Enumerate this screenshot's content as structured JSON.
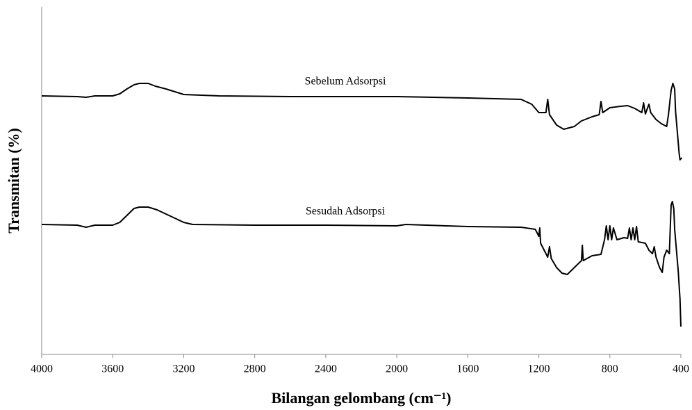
{
  "chart_data": {
    "type": "line",
    "xlabel": "Bilangan gelombang (cm⁻¹)",
    "ylabel": "Transmitan (%)",
    "xlim": [
      4000,
      400
    ],
    "xticks": [
      4000,
      3600,
      3200,
      2800,
      2400,
      2000,
      1600,
      1200,
      800,
      400
    ],
    "ylim": [
      0,
      100
    ],
    "grid": false,
    "series": [
      {
        "name": "Sebelum Adsorpsi",
        "color": "#000000",
        "x": [
          4000,
          3800,
          3750,
          3700,
          3600,
          3560,
          3520,
          3480,
          3450,
          3400,
          3360,
          3300,
          3250,
          3200,
          3000,
          2600,
          2400,
          2000,
          1600,
          1300,
          1240,
          1200,
          1160,
          1150,
          1140,
          1100,
          1060,
          1000,
          960,
          900,
          860,
          850,
          840,
          800,
          740,
          700,
          660,
          620,
          610,
          600,
          580,
          570,
          540,
          510,
          495,
          480,
          470,
          455,
          445,
          435,
          430,
          420,
          410,
          405,
          395
        ],
        "values": [
          74.4,
          74.2,
          74,
          74.4,
          74.4,
          75,
          76.4,
          77.6,
          78,
          78,
          77.2,
          76.4,
          75.6,
          74.8,
          74.4,
          74.2,
          74.2,
          74.2,
          73.8,
          73.4,
          72,
          69.6,
          69.6,
          73.4,
          69,
          66,
          64.8,
          65.6,
          67.2,
          68.4,
          69,
          72.8,
          69.6,
          71,
          71.4,
          71.6,
          70.8,
          69.6,
          72.4,
          69.2,
          72,
          69.6,
          67.6,
          66.4,
          66,
          65.6,
          69,
          76,
          78,
          76.4,
          70,
          64,
          58,
          56,
          56.6
        ]
      },
      {
        "name": "Sesudah Adsorpsi",
        "color": "#000000",
        "x": [
          4000,
          3800,
          3750,
          3700,
          3600,
          3560,
          3520,
          3480,
          3450,
          3400,
          3350,
          3300,
          3250,
          3200,
          3150,
          2800,
          2400,
          2000,
          1950,
          1600,
          1300,
          1220,
          1200,
          1195,
          1190,
          1150,
          1140,
          1130,
          1100,
          1070,
          1040,
          1000,
          960,
          955,
          950,
          900,
          850,
          830,
          820,
          810,
          800,
          790,
          780,
          760,
          720,
          700,
          690,
          680,
          670,
          660,
          650,
          640,
          600,
          580,
          560,
          550,
          540,
          520,
          505,
          495,
          480,
          465,
          455,
          448,
          440,
          435,
          425,
          415,
          405,
          400
        ],
        "values": [
          37.4,
          37.2,
          36.6,
          37.2,
          37.2,
          38,
          40,
          42,
          42.4,
          42.4,
          41.6,
          40.4,
          39.2,
          38,
          37.4,
          37.2,
          37.2,
          37,
          37.4,
          36.8,
          36.6,
          36,
          34,
          36.4,
          32,
          28,
          31,
          27.6,
          25,
          23.4,
          23,
          25,
          27,
          31.4,
          27,
          28.4,
          28.8,
          33,
          37,
          33,
          37,
          33,
          36.4,
          33,
          33.6,
          33.4,
          36.4,
          33,
          36.4,
          33,
          36.8,
          32.4,
          32,
          30,
          29,
          31,
          28,
          25,
          23.6,
          28,
          30,
          29,
          43,
          44,
          42,
          36,
          30,
          24,
          16,
          8
        ]
      }
    ]
  }
}
